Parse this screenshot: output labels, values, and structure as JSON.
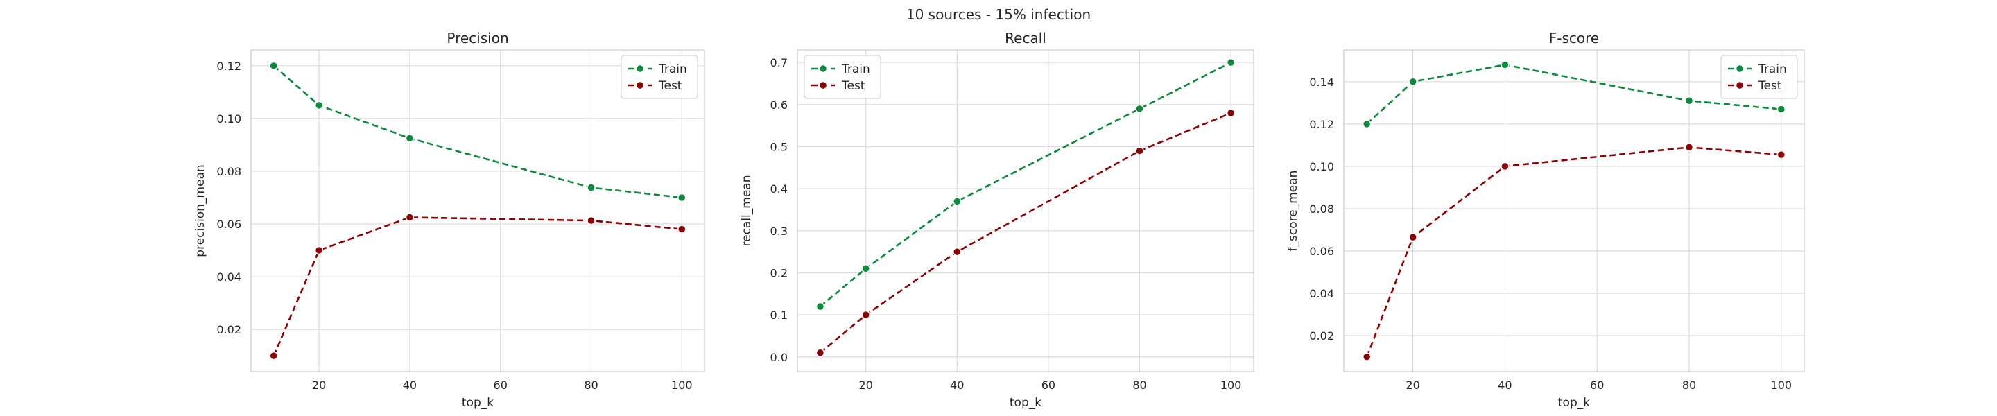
{
  "figure": {
    "title": "10 sources - 15% infection"
  },
  "colors": {
    "train": "#0a8a3a",
    "test": "#8b0000",
    "grid": "#dcdcdc",
    "frame": "#cccccc"
  },
  "chart_data": [
    {
      "type": "line",
      "title": "Precision",
      "xlabel": "top_k",
      "ylabel": "precision_mean",
      "x": [
        10,
        20,
        40,
        80,
        100
      ],
      "xlim": [
        5,
        105
      ],
      "ylim": [
        0.004,
        0.126
      ],
      "xticks": [
        20,
        40,
        60,
        80,
        100
      ],
      "yticks": [
        0.02,
        0.04,
        0.06,
        0.08,
        0.1,
        0.12
      ],
      "ytick_labels": [
        "0.02",
        "0.04",
        "0.06",
        "0.08",
        "0.10",
        "0.12"
      ],
      "legend": "upper right",
      "grid": true,
      "series": [
        {
          "name": "Train",
          "color": "#0a8a3a",
          "marker": "o",
          "linestyle": "dashed",
          "values": [
            0.12,
            0.105,
            0.0925,
            0.0738,
            0.07
          ]
        },
        {
          "name": "Test",
          "color": "#8b0000",
          "marker": "o",
          "linestyle": "dashed",
          "values": [
            0.01,
            0.05,
            0.0625,
            0.0613,
            0.058
          ]
        }
      ]
    },
    {
      "type": "line",
      "title": "Recall",
      "xlabel": "top_k",
      "ylabel": "recall_mean",
      "x": [
        10,
        20,
        40,
        80,
        100
      ],
      "xlim": [
        5,
        105
      ],
      "ylim": [
        -0.035,
        0.73
      ],
      "xticks": [
        20,
        40,
        60,
        80,
        100
      ],
      "yticks": [
        0.0,
        0.1,
        0.2,
        0.3,
        0.4,
        0.5,
        0.6,
        0.7
      ],
      "ytick_labels": [
        "0.0",
        "0.1",
        "0.2",
        "0.3",
        "0.4",
        "0.5",
        "0.6",
        "0.7"
      ],
      "legend": "upper left",
      "grid": true,
      "series": [
        {
          "name": "Train",
          "color": "#0a8a3a",
          "marker": "o",
          "linestyle": "dashed",
          "values": [
            0.12,
            0.21,
            0.37,
            0.59,
            0.7
          ]
        },
        {
          "name": "Test",
          "color": "#8b0000",
          "marker": "o",
          "linestyle": "dashed",
          "values": [
            0.01,
            0.1,
            0.25,
            0.49,
            0.58
          ]
        }
      ]
    },
    {
      "type": "line",
      "title": "F-score",
      "xlabel": "top_k",
      "ylabel": "f_score_mean",
      "x": [
        10,
        20,
        40,
        80,
        100
      ],
      "xlim": [
        5,
        105
      ],
      "ylim": [
        0.003,
        0.155
      ],
      "xticks": [
        20,
        40,
        60,
        80,
        100
      ],
      "yticks": [
        0.02,
        0.04,
        0.06,
        0.08,
        0.1,
        0.12,
        0.14
      ],
      "ytick_labels": [
        "0.02",
        "0.04",
        "0.06",
        "0.08",
        "0.10",
        "0.12",
        "0.14"
      ],
      "legend": "upper right",
      "grid": true,
      "series": [
        {
          "name": "Train",
          "color": "#0a8a3a",
          "marker": "o",
          "linestyle": "dashed",
          "values": [
            0.12,
            0.14,
            0.148,
            0.131,
            0.127
          ]
        },
        {
          "name": "Test",
          "color": "#8b0000",
          "marker": "o",
          "linestyle": "dashed",
          "values": [
            0.01,
            0.0665,
            0.1,
            0.109,
            0.1055
          ]
        }
      ]
    }
  ]
}
